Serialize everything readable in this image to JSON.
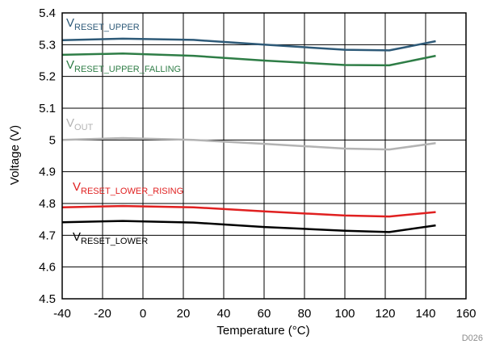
{
  "chart_data": {
    "type": "line",
    "xlabel": "Temperature (°C)",
    "ylabel": "Voltage (V)",
    "figure_id": "D026",
    "xlim": [
      -40,
      160
    ],
    "ylim": [
      4.5,
      5.4
    ],
    "x_ticks": [
      "-40",
      "-20",
      "0",
      "20",
      "40",
      "60",
      "80",
      "100",
      "120",
      "140",
      "160"
    ],
    "y_ticks": [
      "4.5",
      "4.6",
      "4.7",
      "4.8",
      "4.9",
      "5",
      "5.1",
      "5.2",
      "5.3",
      "5.4"
    ],
    "grid": true,
    "series": [
      {
        "name": "VRESET_UPPER",
        "label_main": "V",
        "label_sub": "RESET_UPPER",
        "color": "#2e5a78",
        "x": [
          -40,
          -10,
          25,
          60,
          100,
          122,
          145
        ],
        "y": [
          5.314,
          5.319,
          5.315,
          5.3,
          5.284,
          5.282,
          5.311
        ]
      },
      {
        "name": "VRESET_UPPER_FALLING",
        "label_main": "V",
        "label_sub": "RESET_UPPER_FALLING",
        "color": "#2e7d46",
        "x": [
          -40,
          -10,
          25,
          60,
          100,
          122,
          145
        ],
        "y": [
          5.268,
          5.272,
          5.265,
          5.25,
          5.236,
          5.235,
          5.265
        ]
      },
      {
        "name": "VOUT",
        "label_main": "V",
        "label_sub": "OUT",
        "color": "#b3b3b3",
        "x": [
          -40,
          -10,
          25,
          60,
          100,
          122,
          145
        ],
        "y": [
          5.0,
          5.006,
          5.0,
          4.988,
          4.973,
          4.97,
          4.99
        ]
      },
      {
        "name": "VRESET_LOWER_RISING",
        "label_main": "V",
        "label_sub": "RESET_LOWER_RISING",
        "color": "#e02020",
        "x": [
          -40,
          -10,
          25,
          60,
          100,
          122,
          145
        ],
        "y": [
          4.788,
          4.792,
          4.788,
          4.775,
          4.762,
          4.759,
          4.773
        ]
      },
      {
        "name": "VRESET_LOWER",
        "label_main": "V",
        "label_sub": "RESET_LOWER",
        "color": "#000000",
        "x": [
          -40,
          -10,
          25,
          60,
          100,
          122,
          145
        ],
        "y": [
          4.741,
          4.745,
          4.74,
          4.726,
          4.714,
          4.71,
          4.731
        ]
      }
    ]
  }
}
